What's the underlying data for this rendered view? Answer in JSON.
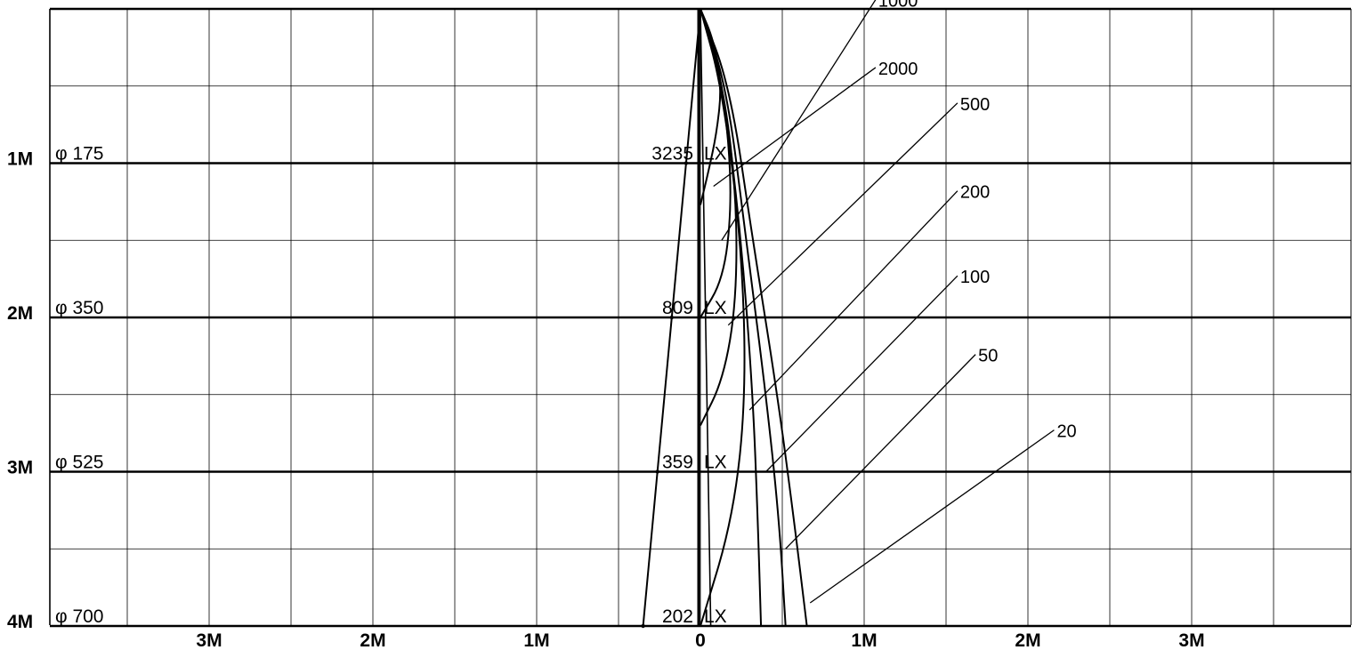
{
  "chart_data": {
    "type": "line",
    "description_text": {
      "x_ticks": [
        "3M",
        "2M",
        "1M",
        "0",
        "1M",
        "2M",
        "3M"
      ],
      "x_tick_values": [
        -3,
        -2,
        -1,
        0,
        1,
        2,
        3
      ],
      "y_rows": [
        {
          "distance_label": "1M",
          "diameter_label": "φ 175",
          "illuminance_label": "3235",
          "unit": "LX",
          "distance": 1,
          "half_beam": 0.0875
        },
        {
          "distance_label": "2M",
          "diameter_label": "φ 350",
          "illuminance_label": "809",
          "unit": "LX",
          "distance": 2,
          "half_beam": 0.175
        },
        {
          "distance_label": "3M",
          "diameter_label": "φ 525",
          "illuminance_label": "359",
          "unit": "LX",
          "distance": 3,
          "half_beam": 0.2625
        },
        {
          "distance_label": "4M",
          "diameter_label": "φ 700",
          "illuminance_label": "202",
          "unit": "LX",
          "distance": 4,
          "half_beam": 0.35
        }
      ]
    },
    "xlim": [
      -3.97,
      4.0
    ],
    "ylim": [
      0,
      4
    ],
    "grid": true,
    "series": [
      {
        "label": "2000",
        "points": [
          [
            0,
            0
          ],
          [
            0.08,
            0.2
          ],
          [
            0.13,
            0.5
          ],
          [
            0.1,
            0.8
          ],
          [
            0.05,
            1.05
          ],
          [
            0,
            1.27
          ]
        ],
        "label_anchor": [
          0.08,
          1.15
        ]
      },
      {
        "label": "1000",
        "points": [
          [
            0,
            0
          ],
          [
            0.1,
            0.3
          ],
          [
            0.17,
            0.8
          ],
          [
            0.19,
            1.3
          ],
          [
            0.14,
            1.75
          ],
          [
            0,
            2.0
          ]
        ],
        "label_anchor": [
          0.13,
          1.5
        ]
      },
      {
        "label": "500",
        "points": [
          [
            0,
            0
          ],
          [
            0.14,
            0.5
          ],
          [
            0.22,
            1.2
          ],
          [
            0.22,
            1.9
          ],
          [
            0.14,
            2.4
          ],
          [
            0,
            2.7
          ]
        ],
        "label_anchor": [
          0.17,
          2.05
        ]
      },
      {
        "label": "200",
        "points": [
          [
            0,
            0
          ],
          [
            0.13,
            0.5
          ],
          [
            0.25,
            1.5
          ],
          [
            0.28,
            2.5
          ],
          [
            0.2,
            3.3
          ],
          [
            0,
            4.0
          ]
        ],
        "label_anchor": [
          0.3,
          2.6
        ]
      },
      {
        "label": "100",
        "points": [
          [
            0,
            0
          ],
          [
            0.14,
            0.5
          ],
          [
            0.25,
            1.5
          ],
          [
            0.32,
            2.5
          ],
          [
            0.35,
            3.3
          ],
          [
            0.37,
            4.0
          ]
        ],
        "label_anchor": [
          0.4,
          3.0
        ]
      },
      {
        "label": "50",
        "points": [
          [
            0,
            0
          ],
          [
            0.16,
            0.5
          ],
          [
            0.28,
            1.5
          ],
          [
            0.4,
            2.5
          ],
          [
            0.48,
            3.3
          ],
          [
            0.52,
            4.0
          ]
        ],
        "label_anchor": [
          0.52,
          3.5
        ]
      },
      {
        "label": "20",
        "points": [
          [
            0,
            0
          ],
          [
            0.18,
            0.5
          ],
          [
            0.32,
            1.5
          ],
          [
            0.47,
            2.5
          ],
          [
            0.57,
            3.3
          ],
          [
            0.65,
            4.0
          ]
        ],
        "label_anchor": [
          0.67,
          3.85
        ]
      }
    ],
    "series_label_positions": [
      [
        1.18,
        0.45
      ],
      [
        1.17,
        0.08
      ],
      [
        1.64,
        0.72
      ],
      [
        1.65,
        1.23
      ],
      [
        1.64,
        1.75
      ],
      [
        1.76,
        2.22
      ],
      [
        2.25,
        2.7
      ]
    ],
    "series_label_values": [
      2000,
      1000,
      500,
      200,
      100,
      50,
      20
    ],
    "series_label_ends": [
      [
        1.07,
        0.38
      ],
      [
        1.07,
        -0.06
      ],
      [
        1.57,
        0.61
      ],
      [
        1.57,
        1.18
      ],
      [
        1.57,
        1.73
      ],
      [
        1.68,
        2.24
      ],
      [
        2.16,
        2.73
      ]
    ],
    "series_label_y": [
      0.44,
      0.08,
      0.72,
      1.24,
      1.74,
      2.24,
      2.74
    ]
  }
}
